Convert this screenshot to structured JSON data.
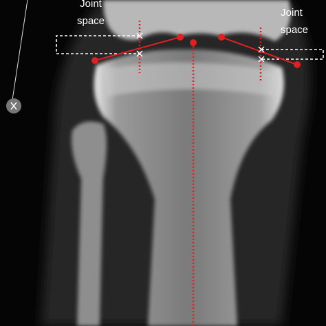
{
  "annotations": [
    {
      "lines": [
        "Joint",
        "space"
      ]
    },
    {
      "lines": [
        "Joint",
        "space"
      ]
    }
  ]
}
